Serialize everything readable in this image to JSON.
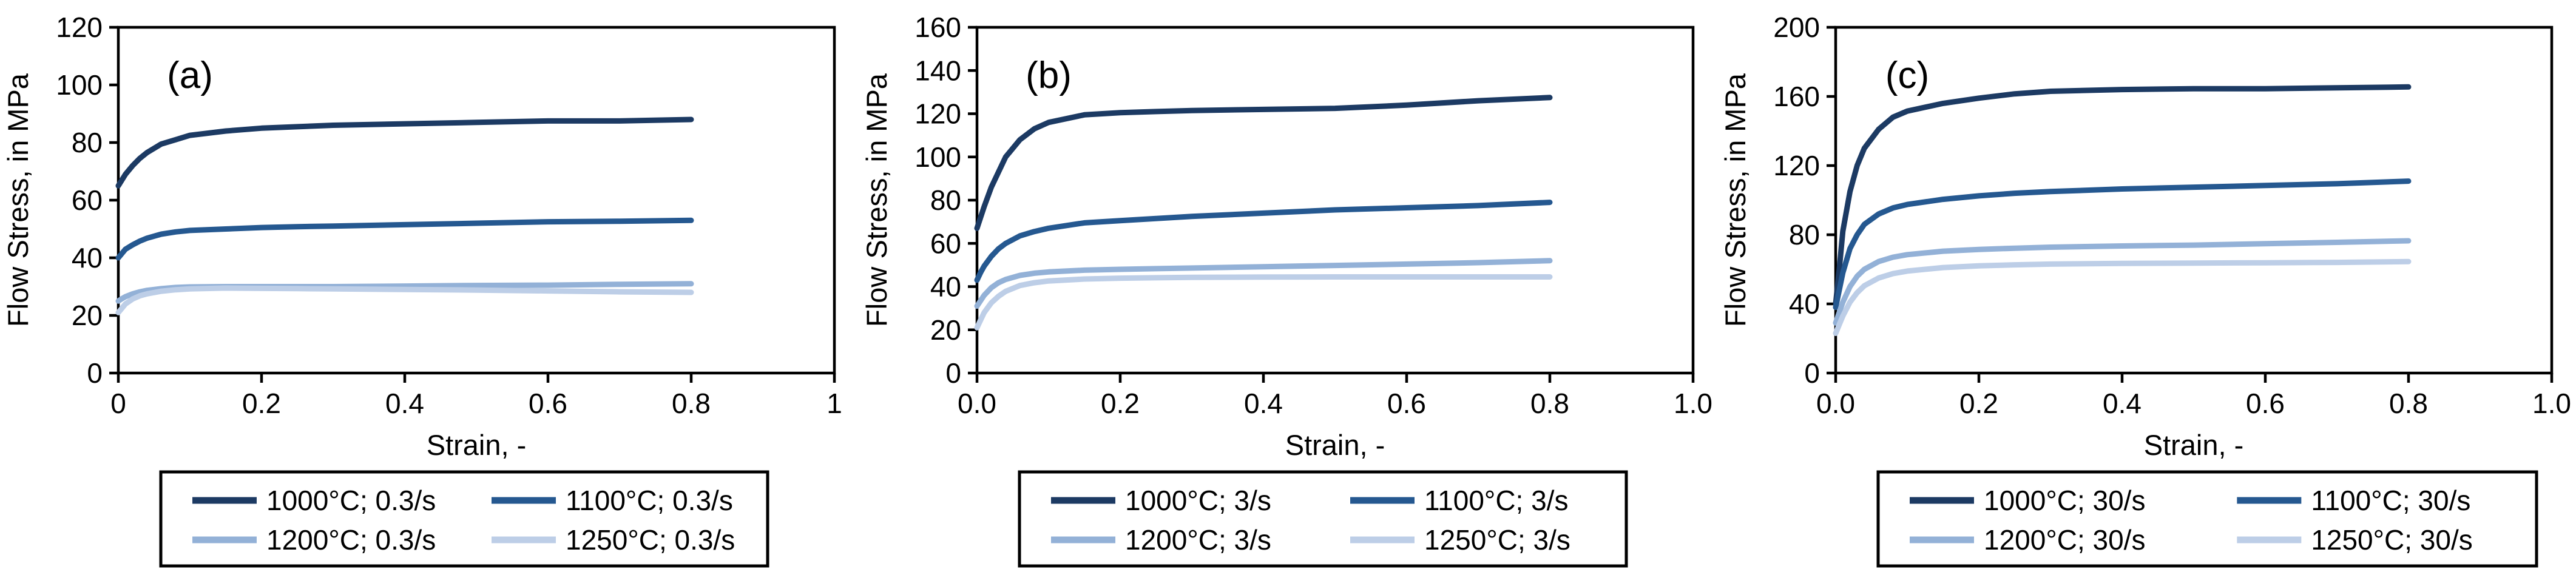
{
  "page": {
    "background": "#ffffff"
  },
  "colors": {
    "axis": "#000000",
    "series_1000": "#1C3A63",
    "series_1100": "#255890",
    "series_1200": "#93B1D7",
    "series_1250": "#BDCEE7"
  },
  "chart_data": [
    {
      "type": "line",
      "panel_label": "(a)",
      "xlabel": "Strain, -",
      "ylabel": "Flow Stress, in MPa",
      "xlim": [
        0,
        1
      ],
      "ylim": [
        0,
        120
      ],
      "grid": false,
      "legend_position": "bottom",
      "legend_columns": 2,
      "xtick_values": [
        0,
        0.2,
        0.4,
        0.6,
        0.8,
        1
      ],
      "xtick_labels": [
        "0",
        "0.2",
        "0.4",
        "0.6",
        "0.8",
        "1"
      ],
      "ytick_values": [
        0,
        20,
        40,
        60,
        80,
        100,
        120
      ],
      "ytick_labels": [
        "0",
        "20",
        "40",
        "60",
        "80",
        "100",
        "120"
      ],
      "x": [
        0,
        0.005,
        0.01,
        0.02,
        0.03,
        0.04,
        0.06,
        0.08,
        0.1,
        0.15,
        0.2,
        0.25,
        0.3,
        0.4,
        0.5,
        0.6,
        0.7,
        0.8
      ],
      "series": [
        {
          "name": "1000°C; 0.3/s",
          "color": "#1C3A63",
          "values": [
            65,
            67,
            69,
            72,
            74.5,
            76.5,
            79.5,
            81,
            82.5,
            84,
            85,
            85.5,
            86,
            86.5,
            87,
            87.5,
            87.5,
            88
          ]
        },
        {
          "name": "1100°C; 0.3/s",
          "color": "#255890",
          "values": [
            40,
            41.5,
            43,
            44.5,
            45.8,
            46.8,
            48.2,
            49,
            49.5,
            50,
            50.5,
            50.8,
            51,
            51.5,
            52,
            52.5,
            52.7,
            53
          ]
        },
        {
          "name": "1200°C; 0.3/s",
          "color": "#93B1D7",
          "values": [
            25,
            25.8,
            26.5,
            27.5,
            28.2,
            28.7,
            29.3,
            29.7,
            29.9,
            30,
            30,
            30,
            30,
            30.2,
            30.4,
            30.5,
            30.8,
            31
          ]
        },
        {
          "name": "1250°C; 0.3/s",
          "color": "#BDCEE7",
          "values": [
            21,
            22.5,
            24,
            25.7,
            26.8,
            27.5,
            28.4,
            28.9,
            29.2,
            29.5,
            29.4,
            29.3,
            29.2,
            29,
            28.8,
            28.5,
            28.2,
            28
          ]
        }
      ]
    },
    {
      "type": "line",
      "panel_label": "(b)",
      "xlabel": "Strain, -",
      "ylabel": "Flow Stress, in MPa",
      "xlim": [
        0,
        1
      ],
      "ylim": [
        0,
        160
      ],
      "grid": false,
      "legend_position": "bottom",
      "legend_columns": 2,
      "xtick_values": [
        0,
        0.2,
        0.4,
        0.6,
        0.8,
        1
      ],
      "xtick_labels": [
        "0.0",
        "0.2",
        "0.4",
        "0.6",
        "0.8",
        "1.0"
      ],
      "ytick_values": [
        0,
        20,
        40,
        60,
        80,
        100,
        120,
        140,
        160
      ],
      "ytick_labels": [
        "0",
        "20",
        "40",
        "60",
        "80",
        "100",
        "120",
        "140",
        "160"
      ],
      "x": [
        0,
        0.005,
        0.01,
        0.02,
        0.03,
        0.04,
        0.06,
        0.08,
        0.1,
        0.15,
        0.2,
        0.25,
        0.3,
        0.4,
        0.5,
        0.6,
        0.7,
        0.8
      ],
      "series": [
        {
          "name": "1000°C; 3/s",
          "color": "#1C3A63",
          "values": [
            67,
            72,
            77,
            86,
            93,
            100,
            108,
            113,
            116,
            119.5,
            120.5,
            121,
            121.5,
            122,
            122.5,
            124,
            126,
            127.5
          ]
        },
        {
          "name": "1100°C; 3/s",
          "color": "#255890",
          "values": [
            43,
            46.5,
            49.5,
            54,
            57.5,
            60,
            63.5,
            65.5,
            67,
            69.5,
            70.5,
            71.5,
            72.5,
            74,
            75.5,
            76.5,
            77.5,
            79
          ]
        },
        {
          "name": "1200°C; 3/s",
          "color": "#93B1D7",
          "values": [
            31,
            33.5,
            36,
            39.5,
            41.8,
            43.3,
            45.2,
            46.2,
            46.8,
            47.6,
            48,
            48.3,
            48.6,
            49.2,
            49.8,
            50.4,
            51.1,
            52
          ]
        },
        {
          "name": "1250°C; 3/s",
          "color": "#BDCEE7",
          "values": [
            21,
            24.5,
            28,
            32.5,
            35.5,
            37.8,
            40.5,
            41.8,
            42.6,
            43.5,
            43.9,
            44.1,
            44.3,
            44.4,
            44.5,
            44.5,
            44.5,
            44.5
          ]
        }
      ]
    },
    {
      "type": "line",
      "panel_label": "(c)",
      "xlabel": "Strain, -",
      "ylabel": "Flow Stress, in MPa",
      "xlim": [
        0,
        1
      ],
      "ylim": [
        0,
        200
      ],
      "grid": false,
      "legend_position": "bottom",
      "legend_columns": 2,
      "xtick_values": [
        0,
        0.2,
        0.4,
        0.6,
        0.8,
        1
      ],
      "xtick_labels": [
        "0.0",
        "0.2",
        "0.4",
        "0.6",
        "0.8",
        "1.0"
      ],
      "ytick_values": [
        0,
        40,
        80,
        120,
        160,
        200
      ],
      "ytick_labels": [
        "0",
        "40",
        "80",
        "120",
        "160",
        "200"
      ],
      "x": [
        0,
        0.005,
        0.01,
        0.02,
        0.03,
        0.04,
        0.06,
        0.08,
        0.1,
        0.15,
        0.2,
        0.25,
        0.3,
        0.4,
        0.5,
        0.6,
        0.7,
        0.8
      ],
      "series": [
        {
          "name": "1000°C; 30/s",
          "color": "#1C3A63",
          "values": [
            40,
            60,
            82,
            105,
            120,
            130,
            141,
            148,
            151.5,
            156,
            159,
            161.5,
            163,
            164,
            164.5,
            164.5,
            165,
            165.5
          ]
        },
        {
          "name": "1100°C; 30/s",
          "color": "#255890",
          "values": [
            38,
            48,
            58,
            72,
            80,
            86,
            92,
            95.5,
            97.5,
            100.5,
            102.5,
            104,
            105,
            106.5,
            107.5,
            108.5,
            109.5,
            111
          ]
        },
        {
          "name": "1200°C; 30/s",
          "color": "#93B1D7",
          "values": [
            29,
            35,
            41,
            50,
            56,
            60,
            64.5,
            67,
            68.5,
            70.5,
            71.5,
            72.2,
            72.8,
            73.5,
            74,
            74.8,
            75.6,
            76.5
          ]
        },
        {
          "name": "1250°C; 30/s",
          "color": "#BDCEE7",
          "values": [
            23,
            28,
            33,
            41,
            46.5,
            50.5,
            55,
            57.5,
            59,
            61,
            62,
            62.6,
            63,
            63.4,
            63.6,
            63.8,
            64,
            64.5
          ]
        }
      ]
    }
  ]
}
